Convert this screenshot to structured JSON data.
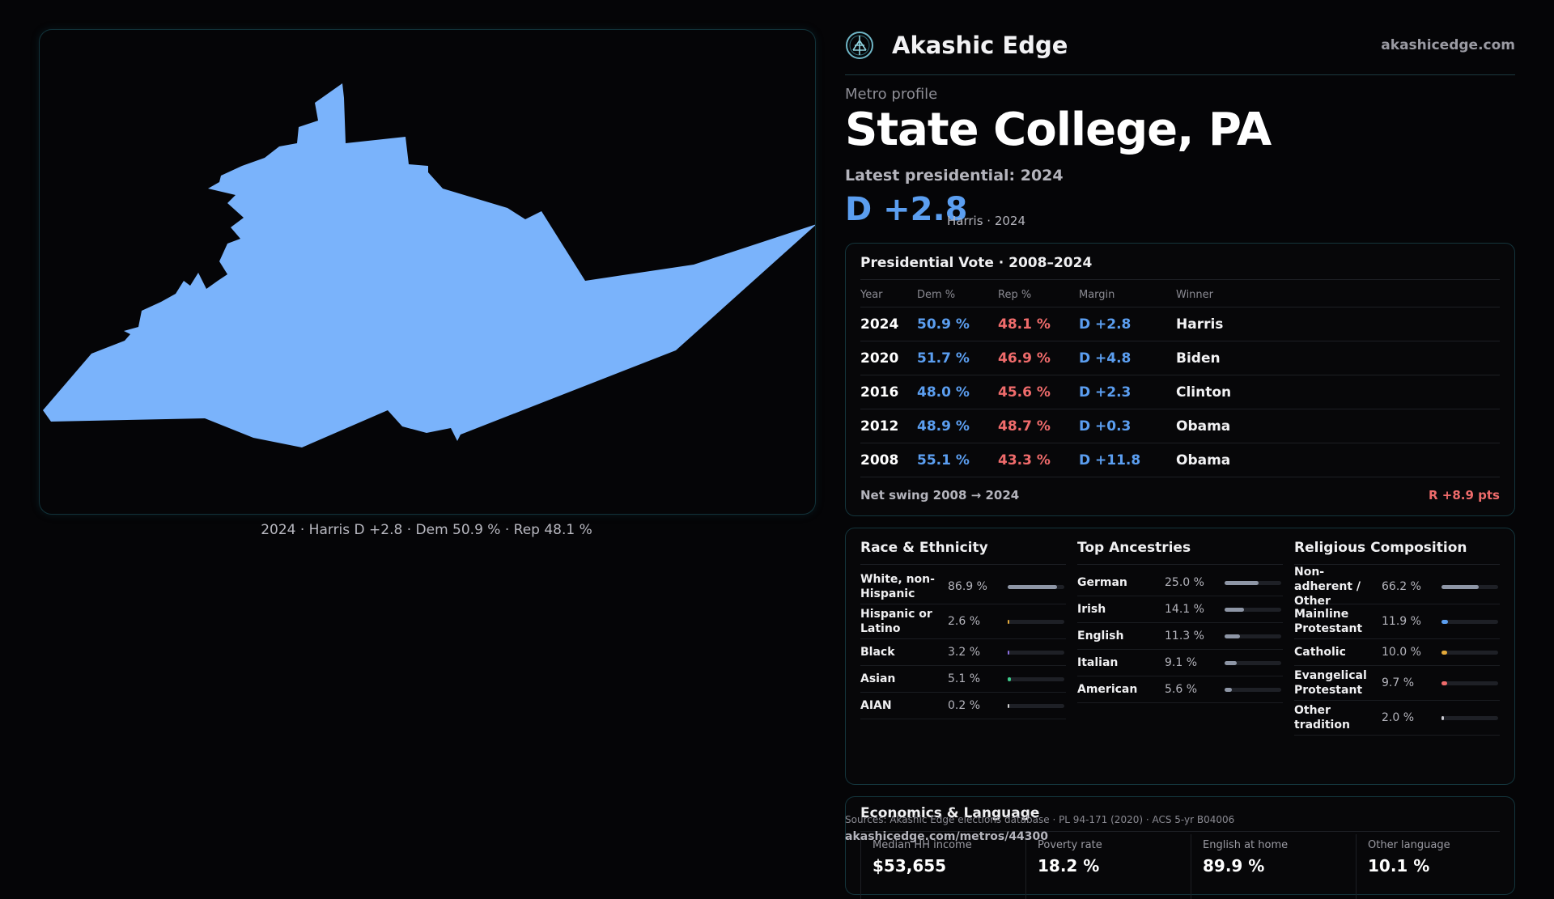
{
  "map": {
    "caption": "2024 · Harris D +2.8 · Dem 50.9 % · Rep 48.1 %",
    "fill_color": "#7ab3fb"
  },
  "brand": {
    "name": "Akashic Edge",
    "url": "akashicedge.com",
    "logo_icon": "tree-of-life-icon"
  },
  "metro": {
    "kicker": "Metro profile",
    "title": "State College, PA",
    "latest_label": "Latest presidential: 2024",
    "latest_margin": "D +2.8",
    "latest_sub": "Harris · 2024"
  },
  "presidential": {
    "title": "Presidential Vote · 2008–2024",
    "headers": [
      "Year",
      "Dem %",
      "Rep %",
      "Margin",
      "Winner"
    ],
    "rows": [
      {
        "year": "2024",
        "dem": "50.9 %",
        "rep": "48.1 %",
        "margin": "D +2.8",
        "winner": "Harris"
      },
      {
        "year": "2020",
        "dem": "51.7 %",
        "rep": "46.9 %",
        "margin": "D +4.8",
        "winner": "Biden"
      },
      {
        "year": "2016",
        "dem": "48.0 %",
        "rep": "45.6 %",
        "margin": "D +2.3",
        "winner": "Clinton"
      },
      {
        "year": "2012",
        "dem": "48.9 %",
        "rep": "48.7 %",
        "margin": "D +0.3",
        "winner": "Obama"
      },
      {
        "year": "2008",
        "dem": "55.1 %",
        "rep": "43.3 %",
        "margin": "D +11.8",
        "winner": "Obama"
      }
    ],
    "swing_label": "Net swing 2008 → 2024",
    "swing_value": "R +8.9 pts"
  },
  "race": {
    "title": "Race & Ethnicity",
    "items": [
      {
        "label": "White, non-Hispanic",
        "value": "86.9 %",
        "pct": 86.9,
        "color": "#8e96a6"
      },
      {
        "label": "Hispanic or Latino",
        "value": "2.6 %",
        "pct": 2.6,
        "color": "#e3a93a"
      },
      {
        "label": "Black",
        "value": "3.2 %",
        "pct": 3.2,
        "color": "#8a6de0"
      },
      {
        "label": "Asian",
        "value": "5.1 %",
        "pct": 5.1,
        "color": "#3ec98a"
      },
      {
        "label": "AIAN",
        "value": "0.2 %",
        "pct": 0.2,
        "color": "#d0d0d0"
      }
    ]
  },
  "ancestry": {
    "title": "Top Ancestries",
    "items": [
      {
        "label": "German",
        "value": "25.0 %",
        "pct": 25.0,
        "color": "#8e96a6"
      },
      {
        "label": "Irish",
        "value": "14.1 %",
        "pct": 14.1,
        "color": "#8e96a6"
      },
      {
        "label": "English",
        "value": "11.3 %",
        "pct": 11.3,
        "color": "#8e96a6"
      },
      {
        "label": "Italian",
        "value": "9.1 %",
        "pct": 9.1,
        "color": "#8e96a6"
      },
      {
        "label": "American",
        "value": "5.6 %",
        "pct": 5.6,
        "color": "#8e96a6"
      }
    ]
  },
  "religion": {
    "title": "Religious Composition",
    "items": [
      {
        "label": "Non-adherent / Other",
        "value": "66.2 %",
        "pct": 66.2,
        "color": "#8e96a6"
      },
      {
        "label": "Mainline Protestant",
        "value": "11.9 %",
        "pct": 11.9,
        "color": "#5b9ef0"
      },
      {
        "label": "Catholic",
        "value": "10.0 %",
        "pct": 10.0,
        "color": "#e3a93a"
      },
      {
        "label": "Evangelical Protestant",
        "value": "9.7 %",
        "pct": 9.7,
        "color": "#ef6b6b"
      },
      {
        "label": "Other tradition",
        "value": "2.0 %",
        "pct": 2.0,
        "color": "#c8c8d0"
      }
    ]
  },
  "economics": {
    "title": "Economics & Language",
    "stats": [
      {
        "label": "Median HH income",
        "value": "$53,655"
      },
      {
        "label": "Poverty rate",
        "value": "18.2 %"
      },
      {
        "label": "English at home",
        "value": "89.9 %"
      },
      {
        "label": "Other language",
        "value": "10.1 %"
      }
    ]
  },
  "footer": {
    "sources": "Sources: Akashic Edge elections database · PL 94-171 (2020) · ACS 5-yr B04006",
    "url": "akashicedge.com/metros/44300"
  }
}
